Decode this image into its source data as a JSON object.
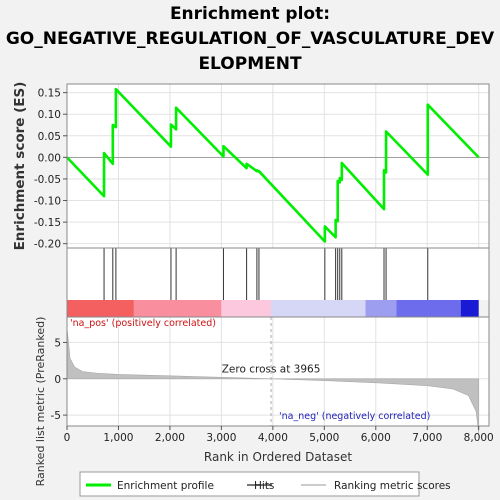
{
  "title_lines": [
    "Enrichment plot:",
    "GO_NEGATIVE_REGULATION_OF_VASCULATURE_DEV",
    "ELOPMENT"
  ],
  "chart_data": {
    "type": "line",
    "x_label": "Rank in Ordered Dataset",
    "x_range": [
      0,
      8200
    ],
    "x_ticks": [
      "0",
      "1,000",
      "2,000",
      "3,000",
      "4,000",
      "5,000",
      "6,000",
      "7,000",
      "8,000"
    ],
    "x_tick_values": [
      0,
      1000,
      2000,
      3000,
      4000,
      5000,
      6000,
      7000,
      8000
    ],
    "enrichment": {
      "y_label": "Enrichment score (ES)",
      "y_range": [
        -0.21,
        0.17
      ],
      "y_ticks": [
        "0.15",
        "0.10",
        "0.05",
        "0.00",
        "-0.05",
        "-0.10",
        "-0.15",
        "-0.20"
      ],
      "y_tick_values": [
        0.15,
        0.1,
        0.05,
        0.0,
        -0.05,
        -0.1,
        -0.15,
        -0.2
      ],
      "color": "#00ee00",
      "x": [
        0,
        720,
        720,
        890,
        890,
        950,
        950,
        2020,
        2020,
        2120,
        2120,
        3040,
        3040,
        3490,
        3490,
        3690,
        3690,
        3730,
        3730,
        5010,
        5010,
        5220,
        5220,
        5260,
        5260,
        5300,
        5300,
        5340,
        5340,
        6160,
        6160,
        6200,
        6200,
        7010,
        7010,
        8000
      ],
      "y": [
        0.0,
        -0.09,
        0.01,
        -0.015,
        0.075,
        0.07,
        0.158,
        0.025,
        0.076,
        0.065,
        0.115,
        0.002,
        0.026,
        -0.025,
        -0.015,
        -0.032,
        -0.03,
        -0.033,
        -0.032,
        -0.195,
        -0.16,
        -0.185,
        -0.145,
        -0.148,
        -0.055,
        -0.058,
        -0.048,
        -0.052,
        -0.013,
        -0.12,
        -0.03,
        -0.035,
        0.06,
        -0.04,
        0.122,
        0.0
      ]
    },
    "hits": [
      720,
      890,
      950,
      2020,
      2120,
      3040,
      3490,
      3690,
      3730,
      5010,
      5220,
      5260,
      5300,
      5340,
      6160,
      6200,
      7010
    ],
    "ranked_metric": {
      "y_label": "Ranked list metric (PreRanked)",
      "y_range": [
        -6.5,
        8.5
      ],
      "y_ticks": [
        "5",
        "0",
        "-5"
      ],
      "y_tick_values": [
        5,
        0,
        -5
      ],
      "x": [
        0,
        60,
        150,
        300,
        600,
        1000,
        2000,
        3000,
        3965,
        5000,
        6000,
        7000,
        7500,
        7800,
        7950,
        8000
      ],
      "y": [
        7.0,
        2.8,
        1.6,
        1.0,
        0.75,
        0.6,
        0.4,
        0.2,
        0.0,
        -0.25,
        -0.55,
        -0.95,
        -1.4,
        -2.3,
        -4.5,
        -7.5
      ],
      "fill": "#c0c0c0"
    },
    "zero_cross": {
      "x": 3965,
      "label": "Zero cross at 3965"
    },
    "pos_label": "'na_pos' (positively correlated)",
    "neg_label": "'na_neg' (negatively correlated)",
    "heatbar": [
      {
        "x0": 0,
        "x1": 1300,
        "color": "#f46060"
      },
      {
        "x0": 1300,
        "x1": 3000,
        "color": "#f98e9e"
      },
      {
        "x0": 3000,
        "x1": 3965,
        "color": "#fbc8dd"
      },
      {
        "x0": 3965,
        "x1": 5800,
        "color": "#d6d6f7"
      },
      {
        "x0": 5800,
        "x1": 6400,
        "color": "#9e9ef0"
      },
      {
        "x0": 6400,
        "x1": 7650,
        "color": "#6c6cec"
      },
      {
        "x0": 7650,
        "x1": 8000,
        "color": "#1a1ad4"
      }
    ],
    "legend": [
      {
        "label": "Enrichment profile",
        "color": "#00ee00"
      },
      {
        "label": "Hits",
        "color": "#777777"
      },
      {
        "label": "Ranking metric scores",
        "color": "#cccccc"
      }
    ]
  }
}
